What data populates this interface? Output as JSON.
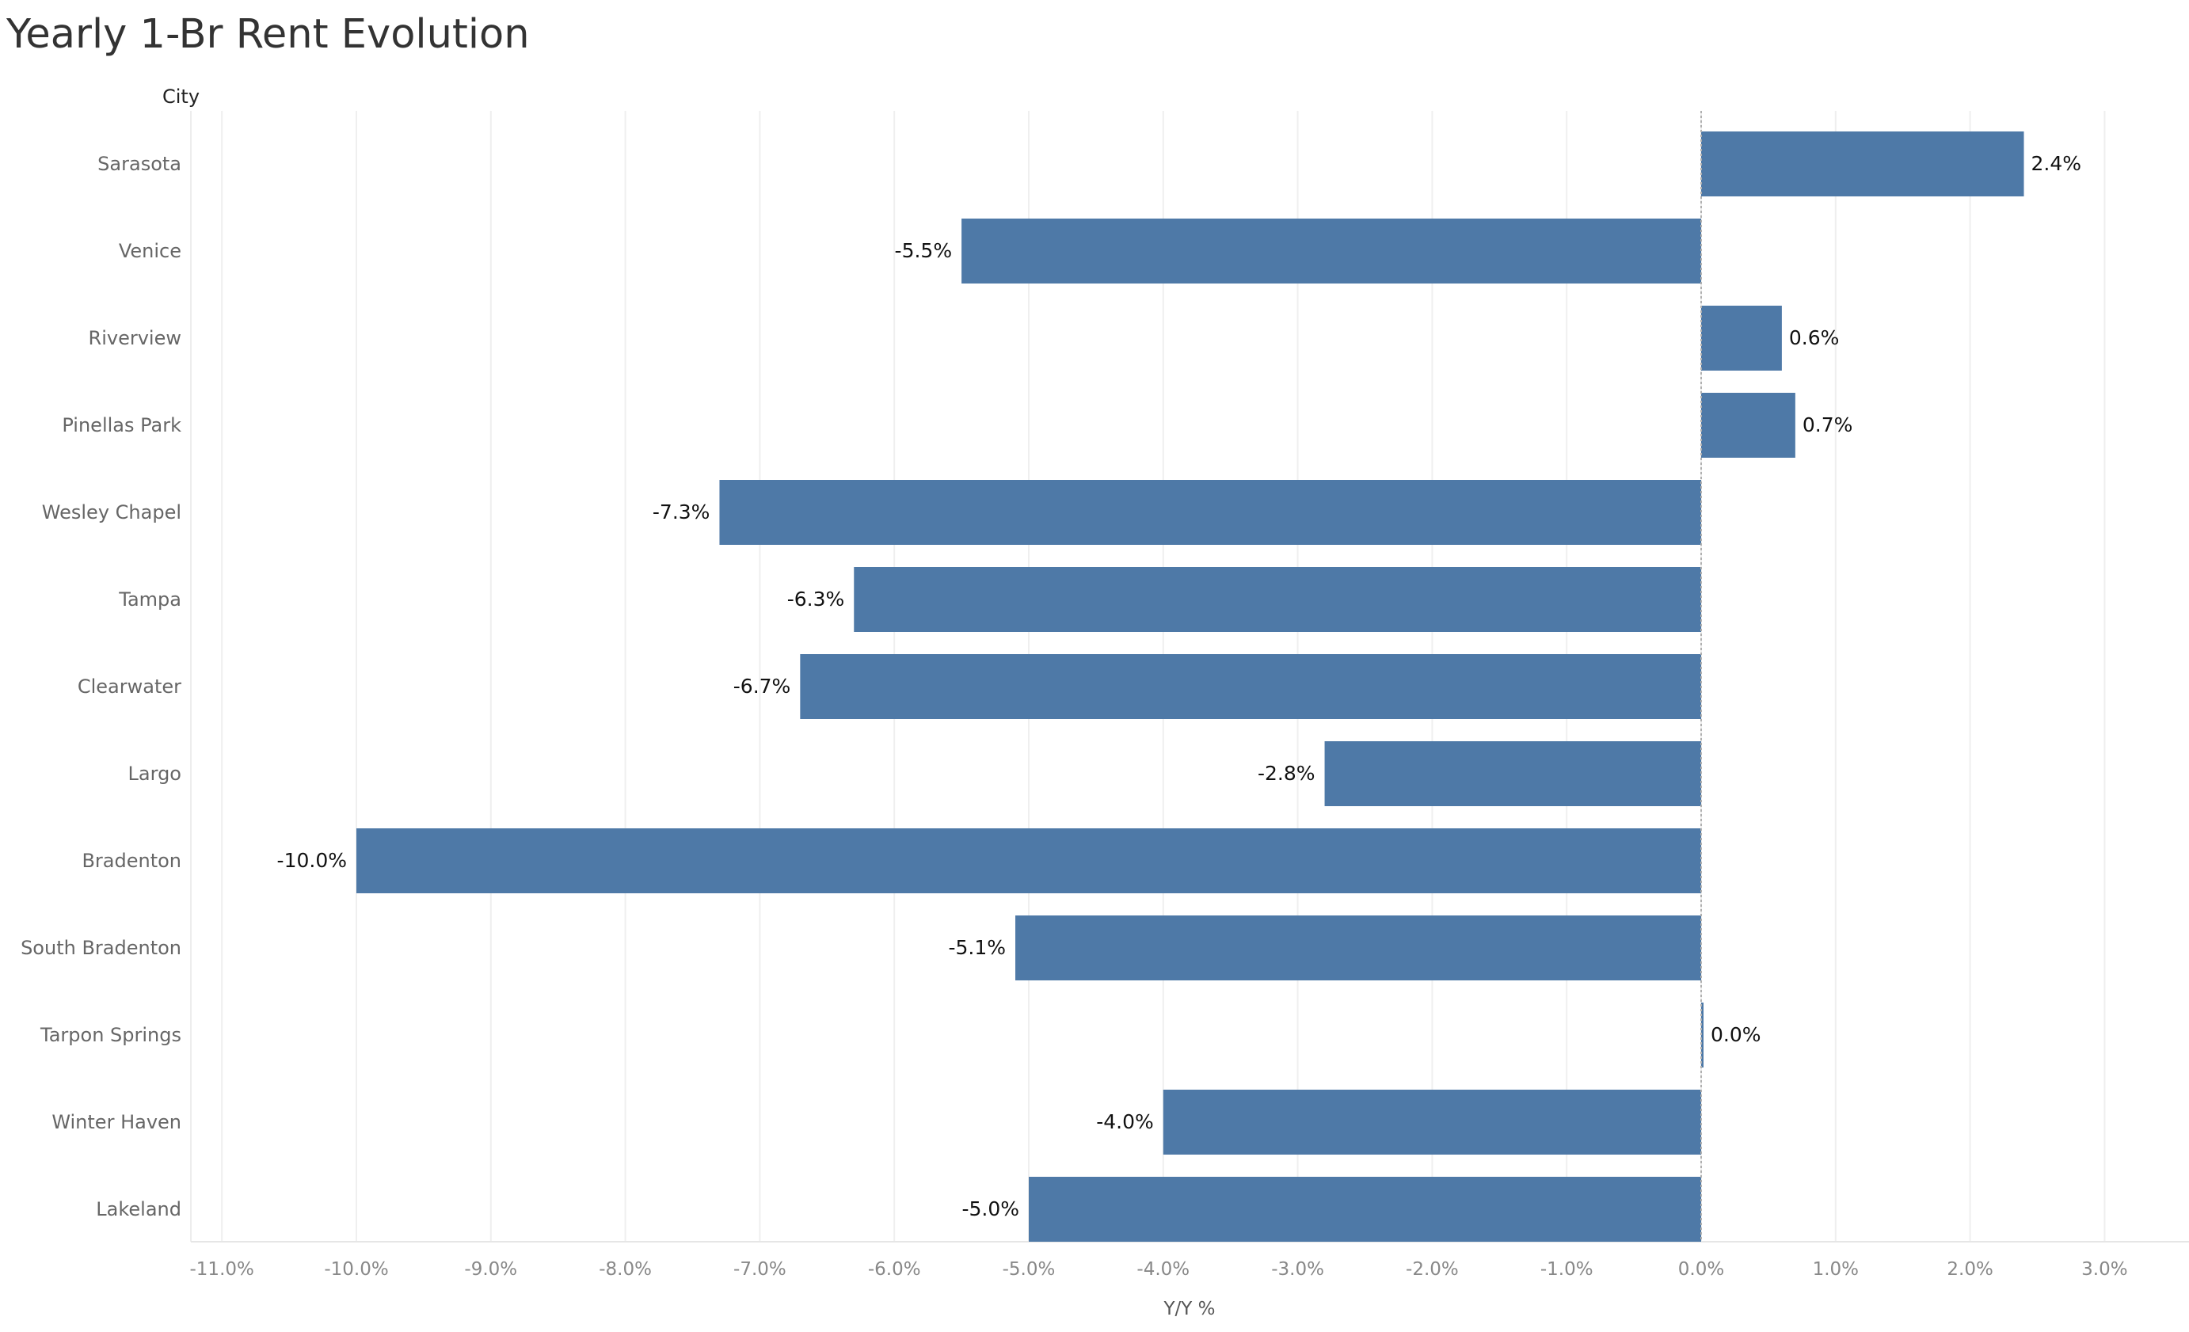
{
  "chart_data": {
    "type": "bar",
    "orientation": "horizontal",
    "title": "Yearly 1-Br Rent Evolution",
    "category_header": "City",
    "xlabel": "Y/Y %",
    "xlim": [
      -11.0,
      3.0
    ],
    "xticks": [
      -11,
      -10,
      -9,
      -8,
      -7,
      -6,
      -5,
      -4,
      -3,
      -2,
      -1,
      0,
      1,
      2,
      3
    ],
    "xtick_labels": [
      "-11.0%",
      "-10.0%",
      "-9.0%",
      "-8.0%",
      "-7.0%",
      "-6.0%",
      "-5.0%",
      "-4.0%",
      "-3.0%",
      "-2.0%",
      "-1.0%",
      "0.0%",
      "1.0%",
      "2.0%",
      "3.0%"
    ],
    "categories": [
      "Sarasota",
      "Venice",
      "Riverview",
      "Pinellas Park",
      "Wesley Chapel",
      "Tampa",
      "Clearwater",
      "Largo",
      "Bradenton",
      "South Bradenton",
      "Tarpon Springs",
      "Winter Haven",
      "Lakeland"
    ],
    "values": [
      2.4,
      -5.5,
      0.6,
      0.7,
      -7.3,
      -6.3,
      -6.7,
      -2.8,
      -10.0,
      -5.1,
      0.0,
      -4.0,
      -5.0
    ],
    "value_labels": [
      "2.4%",
      "-5.5%",
      "0.6%",
      "0.7%",
      "-7.3%",
      "-6.3%",
      "-6.7%",
      "-2.8%",
      "-10.0%",
      "-5.1%",
      "0.0%",
      "-4.0%",
      "-5.0%"
    ],
    "grid": true,
    "legend": "none",
    "colors": {
      "bar": "#4e79a7",
      "title": "#333333",
      "axis_text": "#888888",
      "category_text": "#666666",
      "value_label": "#111111",
      "gridline": "#efefef",
      "zero_line": "#b0b0b0"
    }
  }
}
